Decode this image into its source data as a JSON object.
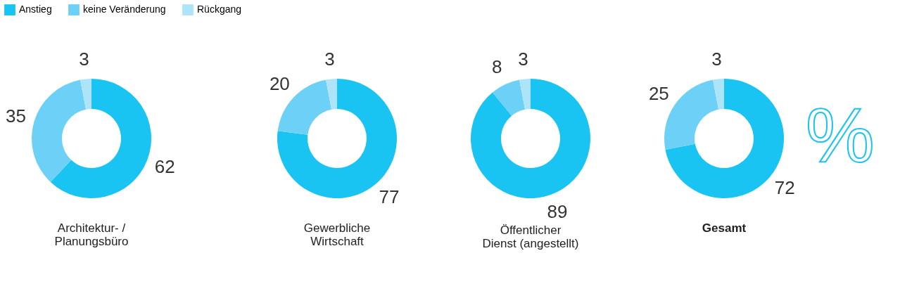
{
  "chart_data": [
    {
      "type": "donut",
      "title": "Architektur- / Planungsbüro",
      "categories": [
        "Anstieg",
        "keine Veränderung",
        "Rückgang"
      ],
      "values": [
        62,
        35,
        3
      ],
      "colors": [
        "#19c3f2",
        "#6dd0f6",
        "#aee4fa"
      ],
      "data_labels": true,
      "legend": "top"
    },
    {
      "type": "donut",
      "title": "Gewerbliche Wirtschaft",
      "categories": [
        null,
        null,
        null
      ],
      "values": [
        77,
        20,
        3
      ],
      "colors": [
        "#19c3f2",
        "#6dd0f6",
        "#aee4fa"
      ],
      "data_labels": true
    },
    {
      "type": "donut",
      "title": "Öffentlicher Dienst (angestellt)",
      "categories": [
        null,
        null,
        null
      ],
      "values": [
        89,
        8,
        3
      ],
      "colors": [
        "#19c3f2",
        "#6dd0f6",
        "#aee4fa"
      ],
      "data_labels": true
    },
    {
      "type": "donut",
      "title": "Gesamt",
      "categories": [
        null,
        null,
        null
      ],
      "values": [
        72,
        25,
        3
      ],
      "colors": [
        "#19c3f2",
        "#6dd0f6",
        "#aee4fa"
      ],
      "data_labels": true,
      "annotations": [
        "%"
      ]
    }
  ]
}
